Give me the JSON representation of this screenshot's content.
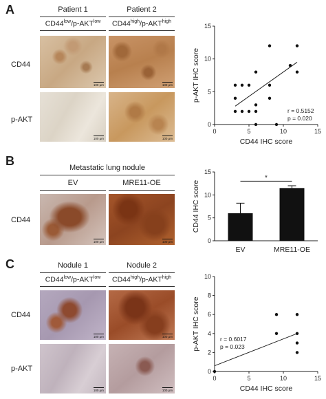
{
  "panels": {
    "A": {
      "letter": "A",
      "col1": "Patient 1",
      "col2": "Patient 2",
      "sub1_base1": "CD44",
      "sub1_sup1": "low",
      "sub1_base2": "/p-AKT",
      "sub1_sup2": "low",
      "sub2_base1": "CD44",
      "sub2_sup1": "high",
      "sub2_base2": "/p-AKT",
      "sub2_sup2": "high",
      "row1": "CD44",
      "row2": "p-AKT",
      "scale": "100 μm"
    },
    "B": {
      "letter": "B",
      "group": "Metastatic lung nodule",
      "col1": "EV",
      "col2": "MRE11-OE",
      "row1": "CD44",
      "scale": "100 μm"
    },
    "C": {
      "letter": "C",
      "col1": "Nodule 1",
      "col2": "Nodule 2",
      "sub1_base1": "CD44",
      "sub1_sup1": "low",
      "sub1_base2": "/p-AKT",
      "sub1_sup2": "low",
      "sub2_base1": "CD44",
      "sub2_sup1": "high",
      "sub2_base2": "/p-AKT",
      "sub2_sup2": "high",
      "row1": "CD44",
      "row2": "p-AKT",
      "scale": "100 μm"
    }
  },
  "chart_data": [
    {
      "type": "scatter",
      "xlabel": "CD44 IHC score",
      "ylabel": "p-AKT IHC score",
      "xlim": [
        0,
        15
      ],
      "ylim": [
        0,
        15
      ],
      "xticks": [
        0,
        5,
        10,
        15
      ],
      "yticks": [
        0,
        5,
        10,
        15
      ],
      "points": [
        [
          3,
          2
        ],
        [
          3,
          4
        ],
        [
          3,
          6
        ],
        [
          4,
          2
        ],
        [
          4,
          6
        ],
        [
          5,
          2
        ],
        [
          5,
          6
        ],
        [
          6,
          0
        ],
        [
          6,
          2
        ],
        [
          6,
          3
        ],
        [
          6,
          8
        ],
        [
          8,
          4
        ],
        [
          8,
          6
        ],
        [
          8,
          12
        ],
        [
          9,
          0
        ],
        [
          11,
          9
        ],
        [
          12,
          8
        ],
        [
          12,
          12
        ]
      ],
      "fit_line": [
        [
          3,
          2.8
        ],
        [
          12,
          9.5
        ]
      ],
      "annotation_r": "r = 0.5152",
      "annotation_p": "p = 0.020"
    },
    {
      "type": "bar",
      "categories": [
        "EV",
        "MRE11-OE"
      ],
      "values": [
        6,
        11.5
      ],
      "errors": [
        2.2,
        0.5
      ],
      "ylabel": "CD44 IHC score",
      "ylim": [
        0,
        15
      ],
      "yticks": [
        0,
        5,
        10,
        15
      ],
      "significance": "*",
      "bar_color": "#111111"
    },
    {
      "type": "scatter",
      "xlabel": "CD44 IHC score",
      "ylabel": "p-AKT IHC score",
      "xlim": [
        0,
        15
      ],
      "ylim": [
        0,
        10
      ],
      "xticks": [
        0,
        5,
        10,
        15
      ],
      "yticks": [
        0,
        2,
        4,
        6,
        8,
        10
      ],
      "points": [
        [
          0,
          0
        ],
        [
          9,
          4
        ],
        [
          9,
          6
        ],
        [
          12,
          2
        ],
        [
          12,
          3
        ],
        [
          12,
          4
        ],
        [
          12,
          6
        ]
      ],
      "fit_line": [
        [
          0,
          0.6
        ],
        [
          12,
          4
        ]
      ],
      "annotation_r": "r = 0.6017",
      "annotation_p": "p = 0.023"
    }
  ]
}
